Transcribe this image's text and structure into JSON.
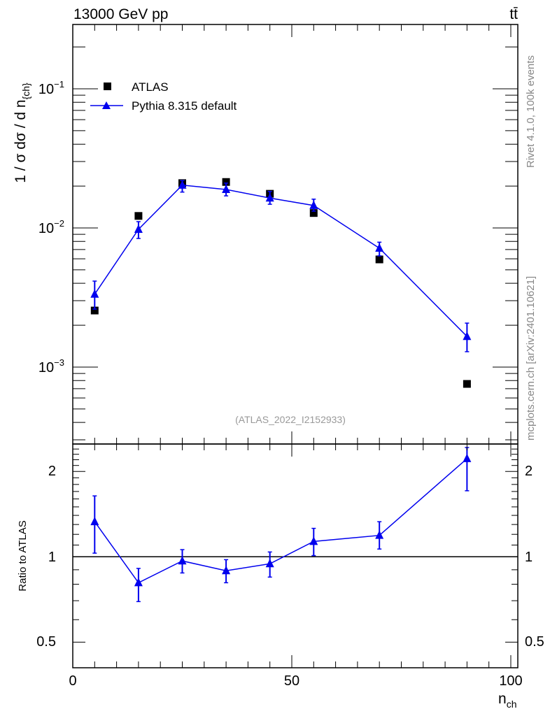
{
  "chart_data": [
    {
      "type": "scatter",
      "panel": "main",
      "title": "13000 GeV pp",
      "process_label": "tt̄",
      "ylabel": "1 / σ dσ / d n",
      "ylabel_sub": "{ch}",
      "yscale": "log",
      "ylim": [
        0.00028,
        0.29
      ],
      "xlim": [
        0,
        101.6
      ],
      "yticks": [
        {
          "base": "10",
          "exp": "−1",
          "value": 0.1
        },
        {
          "base": "10",
          "exp": "−2",
          "value": 0.01
        },
        {
          "base": "10",
          "exp": "−3",
          "value": 0.001
        }
      ],
      "legend_placement": "top-left",
      "series": [
        {
          "name": "ATLAS",
          "marker": "square",
          "color": "#000000",
          "x": [
            5,
            15,
            25,
            35,
            45,
            55,
            70,
            90
          ],
          "y": [
            0.00255,
            0.0122,
            0.021,
            0.0214,
            0.0176,
            0.0128,
            0.00594,
            0.000757
          ]
        },
        {
          "name": "Pythia 8.315 default",
          "marker": "triangle",
          "color": "#0000ee",
          "x": [
            5,
            15,
            25,
            35,
            45,
            55,
            70,
            90
          ],
          "y": [
            0.00334,
            0.00977,
            0.0203,
            0.0189,
            0.0164,
            0.0145,
            0.00715,
            0.00166
          ],
          "yerr_low": [
            0.00261,
            0.0084,
            0.0181,
            0.017,
            0.0148,
            0.0132,
            0.0063,
            0.00129
          ],
          "yerr_high": [
            0.00415,
            0.0111,
            0.0219,
            0.021,
            0.0183,
            0.0161,
            0.0079,
            0.00207
          ]
        }
      ],
      "annotation": "(ATLAS_2022_I2152933)",
      "side_text_top": "Rivet 4.1.0,  100k events",
      "side_text_bottom": "mcplots.cern.ch [arXiv:2401.10621]"
    },
    {
      "type": "line",
      "panel": "ratio",
      "ylabel": "Ratio to ATLAS",
      "xlabel": "n",
      "xlabel_sub": "ch",
      "yscale": "log",
      "ylim": [
        0.406,
        2.5
      ],
      "xlim": [
        0,
        101.6
      ],
      "yticks": [
        "2",
        "1",
        "0.5"
      ],
      "ytick_values": [
        2,
        1,
        0.5
      ],
      "xticks": [
        "0",
        "50",
        "100"
      ],
      "xtick_values": [
        0,
        50,
        100
      ],
      "reference_line": 1,
      "series": [
        {
          "name": "Pythia 8.315 default / ATLAS",
          "color": "#0000ee",
          "x": [
            5,
            15,
            25,
            35,
            45,
            55,
            70,
            90
          ],
          "y": [
            1.33,
            0.81,
            0.967,
            0.893,
            0.945,
            1.133,
            1.19,
            2.22
          ],
          "yerr_low": [
            1.03,
            0.695,
            0.877,
            0.81,
            0.848,
            1.01,
            1.065,
            1.71
          ],
          "yerr_high": [
            1.64,
            0.91,
            1.06,
            0.977,
            1.04,
            1.26,
            1.33,
            2.43
          ]
        }
      ]
    }
  ]
}
